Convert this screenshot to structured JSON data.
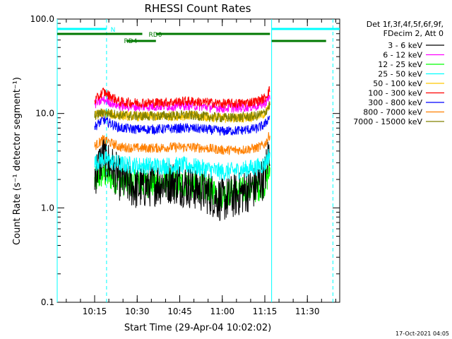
{
  "chart_data": {
    "type": "line",
    "title": "RHESSI Count Rates",
    "xlabel": "Start Time (29-Apr-04 10:02:02)",
    "ylabel": "Count Rate (s⁻¹ detector segment⁻¹)",
    "yscale": "log",
    "ylim": [
      0.1,
      100.0
    ],
    "xlim_minutes": [
      10.03,
      11.69
    ],
    "x_ticks": [
      "10:15",
      "10:30",
      "10:45",
      "11:00",
      "11:15",
      "11:30"
    ],
    "x_tick_minutes": [
      10.25,
      10.5,
      10.75,
      11.0,
      11.25,
      11.5
    ],
    "y_ticks": [
      "0.1",
      "1.0",
      "10.0",
      "100.0"
    ],
    "y_tick_values": [
      0.1,
      1.0,
      10.0,
      100.0
    ],
    "grid": false,
    "legend_position": "right",
    "legend_header": [
      "Det 1f,3f,4f,5f,6f,9f,",
      "FDecim 2, Att 0"
    ],
    "series": [
      {
        "name": "3 - 6 keV",
        "color": "#000000",
        "x": [
          10.25,
          10.3,
          10.4,
          10.5,
          10.6,
          10.7,
          10.8,
          10.9,
          11.0,
          11.1,
          11.2,
          11.25,
          11.28
        ],
        "values": [
          2.2,
          3.6,
          2.0,
          1.6,
          1.8,
          1.9,
          1.7,
          1.5,
          1.2,
          1.4,
          1.7,
          2.2,
          4.5
        ]
      },
      {
        "name": "6 - 12 keV",
        "color": "#ff00ff",
        "x": [
          10.25,
          10.3,
          10.4,
          10.5,
          10.6,
          10.7,
          10.8,
          10.9,
          11.0,
          11.1,
          11.2,
          11.25,
          11.28
        ],
        "values": [
          12.5,
          14.0,
          12.0,
          11.8,
          11.9,
          12.0,
          12.2,
          11.8,
          11.4,
          11.5,
          12.0,
          12.8,
          15.0
        ]
      },
      {
        "name": "12 - 25 keV",
        "color": "#00ff00",
        "x": [
          10.25,
          10.3,
          10.4,
          10.5,
          10.6,
          10.7,
          10.8,
          10.9,
          11.0,
          11.1,
          11.2,
          11.25,
          11.28
        ],
        "values": [
          1.9,
          2.3,
          1.9,
          1.8,
          1.8,
          1.8,
          1.8,
          1.6,
          1.4,
          1.5,
          1.6,
          1.8,
          2.5
        ]
      },
      {
        "name": "25 - 50 keV",
        "color": "#00ffff",
        "x": [
          10.25,
          10.3,
          10.4,
          10.5,
          10.6,
          10.7,
          10.8,
          10.9,
          11.0,
          11.1,
          11.2,
          11.25,
          11.28
        ],
        "values": [
          3.0,
          3.3,
          2.9,
          2.8,
          2.8,
          2.8,
          2.8,
          2.6,
          2.4,
          2.5,
          2.7,
          2.9,
          3.8
        ]
      },
      {
        "name": "50 - 100 keV",
        "color": "#ffc800",
        "x": [
          10.25,
          10.3,
          10.4,
          10.5,
          10.6,
          10.7,
          10.8,
          10.9,
          11.0,
          11.1,
          11.2,
          11.25,
          11.28
        ],
        "values": [
          9.5,
          10.0,
          9.5,
          9.3,
          9.3,
          9.4,
          9.5,
          9.2,
          8.9,
          9.0,
          9.3,
          10.0,
          12.0
        ]
      },
      {
        "name": "100 - 300 keV",
        "color": "#ff0000",
        "x": [
          10.25,
          10.3,
          10.4,
          10.5,
          10.6,
          10.7,
          10.8,
          10.9,
          11.0,
          11.1,
          11.2,
          11.25,
          11.28
        ],
        "values": [
          13.5,
          17.0,
          13.2,
          13.0,
          13.0,
          13.2,
          13.5,
          13.1,
          12.7,
          12.8,
          13.4,
          14.5,
          18.0
        ]
      },
      {
        "name": "300 - 800 keV",
        "color": "#0000ff",
        "x": [
          10.25,
          10.3,
          10.4,
          10.5,
          10.6,
          10.7,
          10.8,
          10.9,
          11.0,
          11.1,
          11.2,
          11.25,
          11.28
        ],
        "values": [
          7.2,
          8.6,
          7.0,
          6.8,
          6.8,
          6.9,
          7.0,
          6.8,
          6.5,
          6.6,
          6.9,
          7.6,
          9.5
        ]
      },
      {
        "name": "800 - 7000 keV",
        "color": "#ff8000",
        "x": [
          10.25,
          10.3,
          10.4,
          10.5,
          10.6,
          10.7,
          10.8,
          10.9,
          11.0,
          11.1,
          11.2,
          11.25,
          11.28
        ],
        "values": [
          4.5,
          5.3,
          4.4,
          4.3,
          4.3,
          4.4,
          4.4,
          4.3,
          4.1,
          4.1,
          4.3,
          4.7,
          6.0
        ]
      },
      {
        "name": "7000 - 15000 keV",
        "color": "#808000",
        "x": [
          10.25,
          10.3,
          10.4,
          10.5,
          10.6,
          10.7,
          10.8,
          10.9,
          11.0,
          11.1,
          11.2,
          11.25,
          11.28
        ],
        "values": [
          9.5,
          10.3,
          9.6,
          9.4,
          9.4,
          9.5,
          9.6,
          9.3,
          9.0,
          9.1,
          9.4,
          10.1,
          12.5
        ]
      }
    ],
    "annotations": {
      "N": {
        "label": "N",
        "color": "#00ffff",
        "segments": [
          [
            10.03,
            10.32
          ],
          [
            11.29,
            11.69
          ]
        ]
      },
      "RD0": {
        "label": "RD0",
        "color": "#007800",
        "segments": [
          [
            10.03,
            10.53
          ],
          [
            10.61,
            11.28
          ]
        ]
      },
      "RD4": {
        "label": "RD4",
        "color": "#007800",
        "segments": [
          [
            10.44,
            10.61
          ],
          [
            11.29,
            11.61
          ]
        ]
      },
      "solid_lines": {
        "color": "#00ffff",
        "x": [
          10.03,
          11.29
        ]
      },
      "dashed_lines": {
        "color": "#00ffff",
        "x": [
          10.32,
          11.65
        ]
      }
    },
    "footer_stamp": "17-Oct-2021 04:05"
  }
}
